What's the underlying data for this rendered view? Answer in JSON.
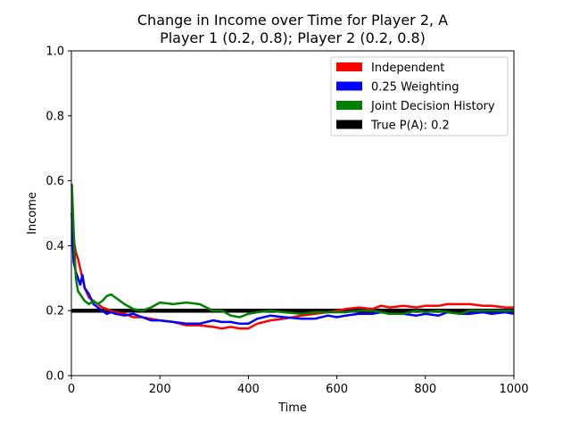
{
  "chart_data": {
    "type": "line",
    "title_line1": "Change in Income over Time for Player 2, A",
    "title_line2": "Player 1 (0.2, 0.8); Player 2 (0.2, 0.8)",
    "xlabel": "Time",
    "ylabel": "Income",
    "xlim": [
      0,
      1000
    ],
    "ylim": [
      0.0,
      1.0
    ],
    "x_ticks": [
      0,
      200,
      400,
      600,
      800,
      1000
    ],
    "x_tick_labels": [
      "0",
      "200",
      "400",
      "600",
      "800",
      "1000"
    ],
    "y_ticks": [
      0.0,
      0.2,
      0.4,
      0.6,
      0.8,
      1.0
    ],
    "y_tick_labels": [
      "0.0",
      "0.2",
      "0.4",
      "0.6",
      "0.8",
      "1.0"
    ],
    "legend_position": "top-right",
    "series": [
      {
        "name": "Independent",
        "color": "#ff0000",
        "x": [
          1,
          5,
          10,
          15,
          20,
          25,
          30,
          40,
          50,
          60,
          70,
          80,
          90,
          100,
          120,
          140,
          160,
          180,
          200,
          230,
          260,
          290,
          320,
          340,
          360,
          380,
          400,
          420,
          450,
          480,
          520,
          550,
          580,
          600,
          620,
          650,
          680,
          700,
          720,
          750,
          780,
          800,
          830,
          850,
          880,
          900,
          930,
          950,
          980,
          1000
        ],
        "values": [
          0.5,
          0.42,
          0.38,
          0.36,
          0.33,
          0.3,
          0.27,
          0.24,
          0.23,
          0.22,
          0.21,
          0.205,
          0.2,
          0.195,
          0.19,
          0.18,
          0.18,
          0.175,
          0.17,
          0.165,
          0.155,
          0.155,
          0.15,
          0.145,
          0.15,
          0.145,
          0.145,
          0.16,
          0.17,
          0.175,
          0.185,
          0.19,
          0.195,
          0.2,
          0.205,
          0.21,
          0.205,
          0.215,
          0.21,
          0.215,
          0.21,
          0.215,
          0.215,
          0.22,
          0.22,
          0.22,
          0.215,
          0.215,
          0.21,
          0.21
        ]
      },
      {
        "name": "0.25 Weighting",
        "color": "#0000ff",
        "x": [
          1,
          5,
          10,
          15,
          20,
          25,
          30,
          40,
          50,
          60,
          70,
          80,
          90,
          100,
          120,
          140,
          160,
          180,
          200,
          230,
          260,
          290,
          320,
          340,
          360,
          380,
          400,
          420,
          450,
          480,
          520,
          550,
          580,
          600,
          620,
          650,
          680,
          700,
          720,
          750,
          780,
          800,
          830,
          850,
          880,
          900,
          930,
          950,
          980,
          1000
        ],
        "values": [
          0.5,
          0.35,
          0.32,
          0.3,
          0.28,
          0.31,
          0.27,
          0.25,
          0.22,
          0.21,
          0.2,
          0.19,
          0.195,
          0.19,
          0.185,
          0.19,
          0.18,
          0.17,
          0.17,
          0.165,
          0.16,
          0.16,
          0.17,
          0.165,
          0.165,
          0.16,
          0.16,
          0.175,
          0.185,
          0.18,
          0.175,
          0.175,
          0.185,
          0.18,
          0.185,
          0.19,
          0.19,
          0.195,
          0.19,
          0.19,
          0.185,
          0.19,
          0.185,
          0.195,
          0.19,
          0.19,
          0.195,
          0.19,
          0.195,
          0.19
        ]
      },
      {
        "name": "Joint Decision History",
        "color": "#008000",
        "x": [
          1,
          5,
          10,
          15,
          20,
          25,
          30,
          40,
          50,
          60,
          70,
          80,
          90,
          100,
          120,
          140,
          160,
          180,
          200,
          230,
          260,
          290,
          320,
          340,
          360,
          380,
          400,
          420,
          450,
          480,
          520,
          550,
          580,
          600,
          620,
          650,
          680,
          700,
          720,
          750,
          780,
          800,
          830,
          850,
          880,
          900,
          930,
          950,
          980,
          1000
        ],
        "values": [
          0.59,
          0.45,
          0.3,
          0.26,
          0.25,
          0.24,
          0.23,
          0.22,
          0.23,
          0.22,
          0.23,
          0.245,
          0.25,
          0.24,
          0.22,
          0.205,
          0.2,
          0.21,
          0.225,
          0.22,
          0.225,
          0.22,
          0.2,
          0.2,
          0.185,
          0.18,
          0.19,
          0.195,
          0.2,
          0.195,
          0.19,
          0.195,
          0.195,
          0.195,
          0.195,
          0.2,
          0.2,
          0.195,
          0.19,
          0.19,
          0.2,
          0.195,
          0.2,
          0.195,
          0.19,
          0.2,
          0.2,
          0.2,
          0.2,
          0.2
        ]
      },
      {
        "name": "True P(A): 0.2",
        "color": "#000000",
        "x": [
          0,
          1000
        ],
        "values": [
          0.2,
          0.2
        ]
      }
    ]
  }
}
